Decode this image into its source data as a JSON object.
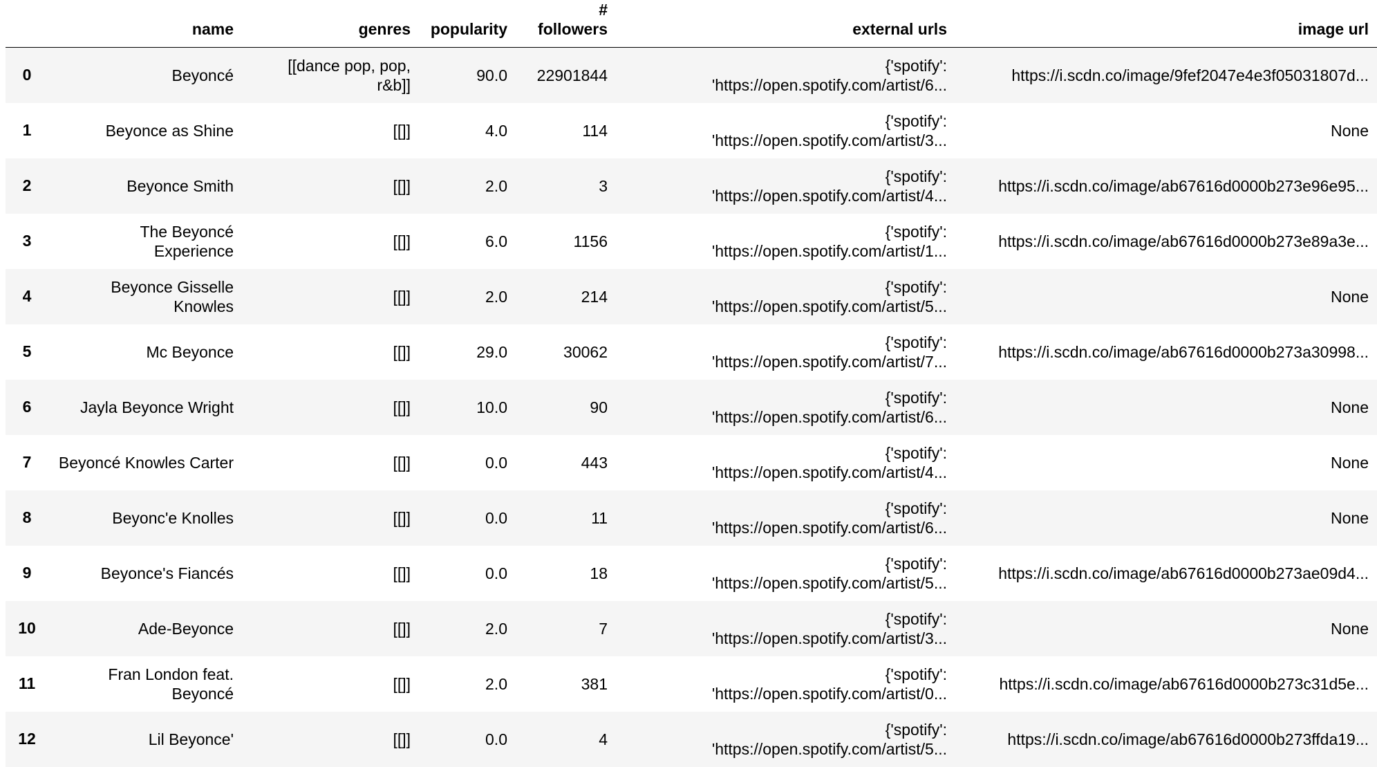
{
  "table": {
    "columns": {
      "index": "",
      "name": "name",
      "genres": "genres",
      "popularity": "popularity",
      "followers_line1": "#",
      "followers_line2": "followers",
      "external_urls": "external urls",
      "image_url": "image url"
    },
    "rows": [
      {
        "index": "0",
        "name": "Beyoncé",
        "genres": "[[dance pop, pop, r&b]]",
        "popularity": "90.0",
        "followers": "22901844",
        "ext_line1": "{'spotify':",
        "ext_line2": "'https://open.spotify.com/artist/6...",
        "image_url": "https://i.scdn.co/image/9fef2047e4e3f05031807d..."
      },
      {
        "index": "1",
        "name": "Beyonce as Shine",
        "genres": "[[]]",
        "popularity": "4.0",
        "followers": "114",
        "ext_line1": "{'spotify':",
        "ext_line2": "'https://open.spotify.com/artist/3...",
        "image_url": "None"
      },
      {
        "index": "2",
        "name": "Beyonce Smith",
        "genres": "[[]]",
        "popularity": "2.0",
        "followers": "3",
        "ext_line1": "{'spotify':",
        "ext_line2": "'https://open.spotify.com/artist/4...",
        "image_url": "https://i.scdn.co/image/ab67616d0000b273e96e95..."
      },
      {
        "index": "3",
        "name": "The Beyoncé Experience",
        "genres": "[[]]",
        "popularity": "6.0",
        "followers": "1156",
        "ext_line1": "{'spotify':",
        "ext_line2": "'https://open.spotify.com/artist/1...",
        "image_url": "https://i.scdn.co/image/ab67616d0000b273e89a3e..."
      },
      {
        "index": "4",
        "name": "Beyonce Gisselle Knowles",
        "genres": "[[]]",
        "popularity": "2.0",
        "followers": "214",
        "ext_line1": "{'spotify':",
        "ext_line2": "'https://open.spotify.com/artist/5...",
        "image_url": "None"
      },
      {
        "index": "5",
        "name": "Mc Beyonce",
        "genres": "[[]]",
        "popularity": "29.0",
        "followers": "30062",
        "ext_line1": "{'spotify':",
        "ext_line2": "'https://open.spotify.com/artist/7...",
        "image_url": "https://i.scdn.co/image/ab67616d0000b273a30998..."
      },
      {
        "index": "6",
        "name": "Jayla Beyonce Wright",
        "genres": "[[]]",
        "popularity": "10.0",
        "followers": "90",
        "ext_line1": "{'spotify':",
        "ext_line2": "'https://open.spotify.com/artist/6...",
        "image_url": "None"
      },
      {
        "index": "7",
        "name": "Beyoncé Knowles Carter",
        "genres": "[[]]",
        "popularity": "0.0",
        "followers": "443",
        "ext_line1": "{'spotify':",
        "ext_line2": "'https://open.spotify.com/artist/4...",
        "image_url": "None"
      },
      {
        "index": "8",
        "name": "Beyonc'e Knolles",
        "genres": "[[]]",
        "popularity": "0.0",
        "followers": "11",
        "ext_line1": "{'spotify':",
        "ext_line2": "'https://open.spotify.com/artist/6...",
        "image_url": "None"
      },
      {
        "index": "9",
        "name": "Beyonce's Fiancés",
        "genres": "[[]]",
        "popularity": "0.0",
        "followers": "18",
        "ext_line1": "{'spotify':",
        "ext_line2": "'https://open.spotify.com/artist/5...",
        "image_url": "https://i.scdn.co/image/ab67616d0000b273ae09d4..."
      },
      {
        "index": "10",
        "name": "Ade-Beyonce",
        "genres": "[[]]",
        "popularity": "2.0",
        "followers": "7",
        "ext_line1": "{'spotify':",
        "ext_line2": "'https://open.spotify.com/artist/3...",
        "image_url": "None"
      },
      {
        "index": "11",
        "name": "Fran London feat. Beyoncé",
        "genres": "[[]]",
        "popularity": "2.0",
        "followers": "381",
        "ext_line1": "{'spotify':",
        "ext_line2": "'https://open.spotify.com/artist/0...",
        "image_url": "https://i.scdn.co/image/ab67616d0000b273c31d5e..."
      },
      {
        "index": "12",
        "name": "Lil Beyonce'",
        "genres": "[[]]",
        "popularity": "0.0",
        "followers": "4",
        "ext_line1": "{'spotify':",
        "ext_line2": "'https://open.spotify.com/artist/5...",
        "image_url": "https://i.scdn.co/image/ab67616d0000b273ffda19..."
      }
    ]
  },
  "colors": {
    "row_stripe": "#f5f5f5",
    "row_plain": "#ffffff",
    "header_rule": "#000000",
    "text": "#000000"
  }
}
